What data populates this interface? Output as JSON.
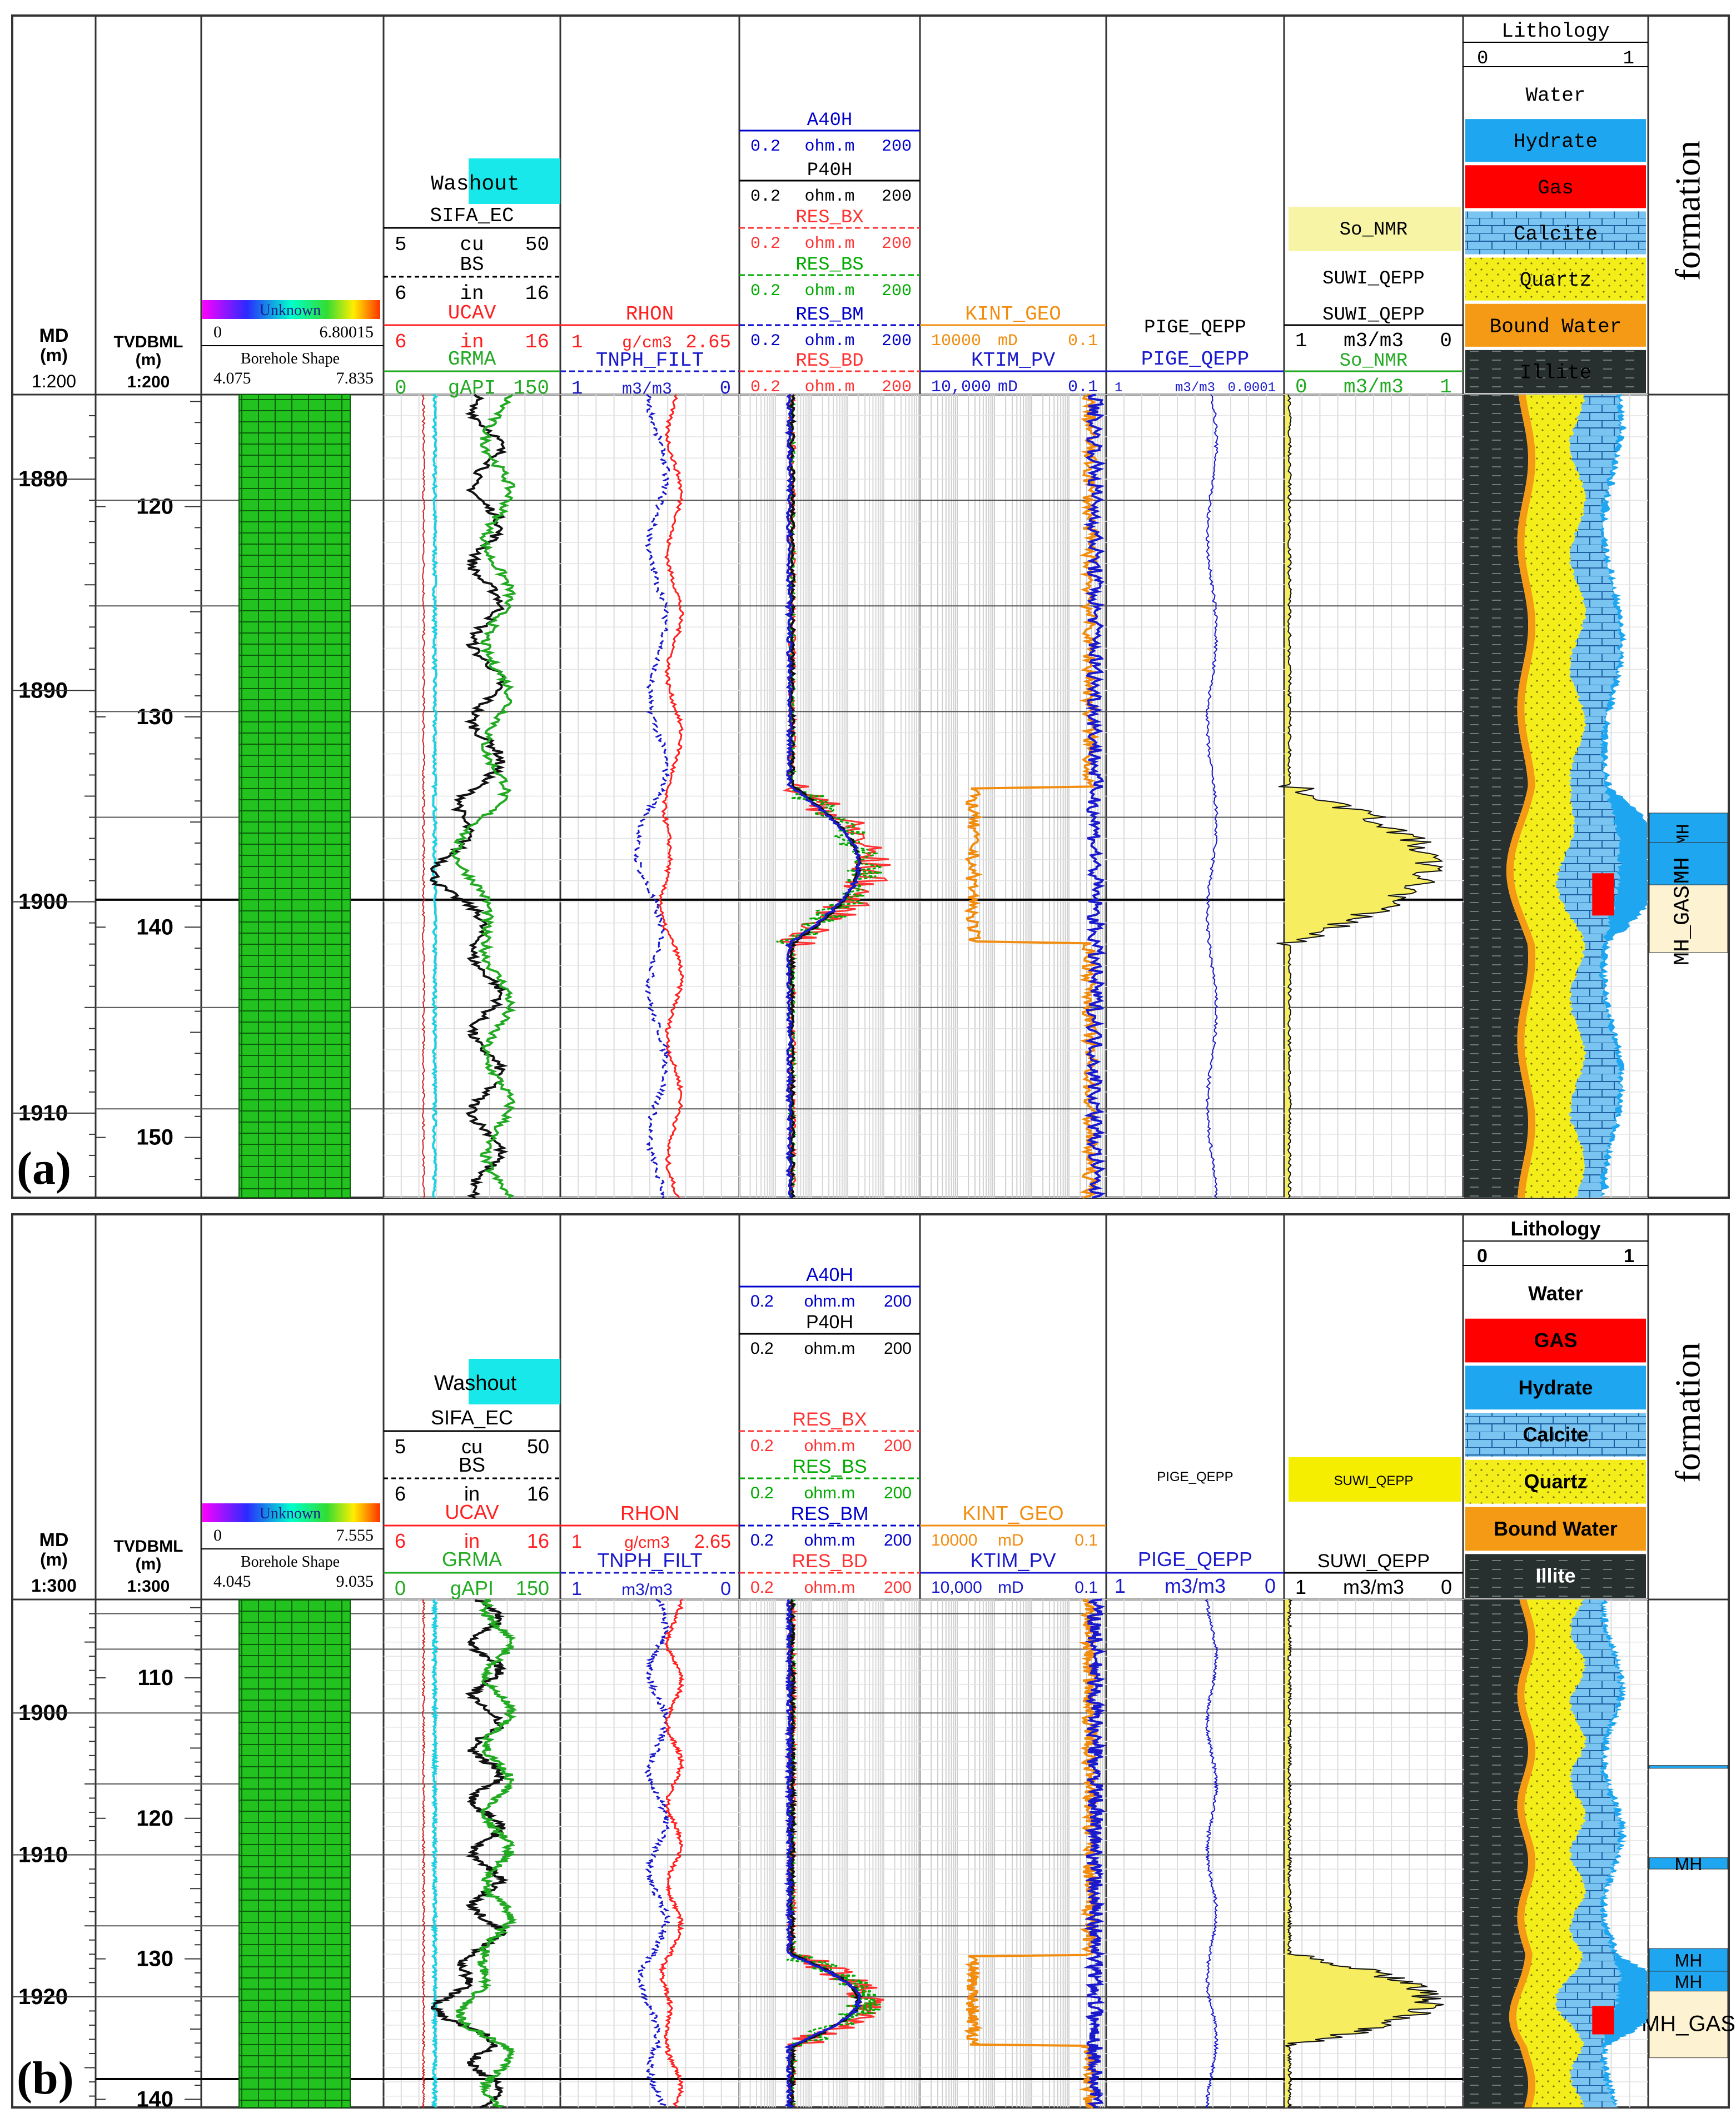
{
  "chart_data": [
    {
      "type": "well-log",
      "panel_label": "(a)",
      "depth_header": {
        "md": "MD",
        "md_unit": "(m)",
        "md_scale": "1:200",
        "tvd": "TVDBML",
        "tvd_unit": "(m)",
        "tvd_scale": "1:200"
      },
      "md_ticks": [
        "1880",
        "1890",
        "1900",
        "1910"
      ],
      "md_values": [
        1880,
        1890,
        1900,
        1910
      ],
      "tvd_ticks": [
        "120",
        "130",
        "140",
        "150"
      ],
      "tvd_values": [
        120,
        130,
        140,
        150
      ],
      "depth_range_md": [
        1876,
        1914
      ],
      "track1": {
        "image": {
          "name": "Unknown",
          "min": "0",
          "max": "6.80015"
        },
        "shape": {
          "name": "Borehole Shape",
          "min": "4.075",
          "max": "7.835"
        }
      },
      "track2": {
        "washout": "Washout",
        "sifa": {
          "name": "SIFA_EC",
          "min": "5",
          "unit": "cu",
          "max": "50"
        },
        "bs": {
          "name": "BS",
          "min": "6",
          "unit": "in",
          "max": "16"
        },
        "ucav": {
          "name": "UCAV",
          "min": "6",
          "unit": "in",
          "max": "16"
        },
        "grma": {
          "name": "GRMA",
          "min": "0",
          "unit": "gAPI",
          "max": "150"
        }
      },
      "track3": {
        "rhon": {
          "name": "RHON",
          "min": "1",
          "unit": "g/cm3",
          "max": "2.65"
        },
        "tnph": {
          "name": "TNPH_FILT",
          "min": "1",
          "unit": "m3/m3",
          "max": "0"
        }
      },
      "track4": [
        {
          "name": "A40H",
          "min": "0.2",
          "unit": "ohm.m",
          "max": "200",
          "color": "#0000cc"
        },
        {
          "name": "P40H",
          "min": "0.2",
          "unit": "ohm.m",
          "max": "200",
          "color": "#000000"
        },
        {
          "name": "RES_BX",
          "min": "0.2",
          "unit": "ohm.m",
          "max": "200",
          "color": "#ff3333"
        },
        {
          "name": "RES_BS",
          "min": "0.2",
          "unit": "ohm.m",
          "max": "200",
          "color": "#00aa00"
        },
        {
          "name": "RES_BM",
          "min": "0.2",
          "unit": "ohm.m",
          "max": "200",
          "color": "#0000cc"
        },
        {
          "name": "RES_BD",
          "min": "0.2",
          "unit": "ohm.m",
          "max": "200",
          "color": "#ff3333"
        }
      ],
      "track5": {
        "kint": {
          "name": "KINT_GEO",
          "min": "10000",
          "unit": "mD",
          "max": "0.1"
        },
        "ktim": {
          "name": "KTIM_PV",
          "min": "10,000",
          "unit": "mD",
          "max": "0.1"
        }
      },
      "track6": {
        "top": "PIGE_QEPP",
        "name": "PIGE_QEPP",
        "min": "1",
        "unit": "m3/m3",
        "max": "0.0001"
      },
      "track7": {
        "fill": "So_NMR",
        "suwi_top": "SUWI_QEPP",
        "suwi": {
          "name": "SUWI_QEPP",
          "min": "1",
          "unit": "m3/m3",
          "max": "0"
        },
        "so": {
          "name": "So_NMR",
          "min": "0",
          "unit": "m3/m3",
          "max": "1"
        }
      },
      "lithology": {
        "title": "Lithology",
        "min": "0",
        "max": "1",
        "legend": [
          {
            "name": "Water",
            "color": "#ffffff"
          },
          {
            "name": "Hydrate",
            "color": "#1ea7f0"
          },
          {
            "name": "Gas",
            "color": "#ff0000"
          },
          {
            "name": "Calcite",
            "color": "#79c4f0"
          },
          {
            "name": "Quartz",
            "color": "#f3ee1a"
          },
          {
            "name": "Bound Water",
            "color": "#f59a14"
          },
          {
            "name": "Illite",
            "color": "#27302e"
          }
        ]
      },
      "formation": {
        "title": "formation",
        "zones": [
          {
            "label": "MH",
            "top_md": 1895.8,
            "bottom_md": 1897.2,
            "color": "#1ea7f0"
          },
          {
            "label": "MH",
            "top_md": 1897.2,
            "bottom_md": 1899.2,
            "color": "#1ea7f0"
          },
          {
            "label": "MH_GAS",
            "top_md": 1899.2,
            "bottom_md": 1902.4,
            "color": "#fdf3d2"
          }
        ]
      }
    },
    {
      "type": "well-log",
      "panel_label": "(b)",
      "depth_header": {
        "md": "MD",
        "md_unit": "(m)",
        "md_scale": "1:300",
        "tvd": "TVDBML",
        "tvd_unit": "(m)",
        "tvd_scale": "1:300"
      },
      "md_ticks": [
        "1900",
        "1910",
        "1920"
      ],
      "md_values": [
        1900,
        1910,
        1920
      ],
      "tvd_ticks": [
        "110",
        "120",
        "130",
        "140"
      ],
      "tvd_values": [
        110,
        120,
        130,
        140
      ],
      "depth_range_md": [
        1892,
        1927.8
      ],
      "track1": {
        "image": {
          "name": "Unknown",
          "min": "0",
          "max": "7.555"
        },
        "shape": {
          "name": "Borehole Shape",
          "min": "4.045",
          "max": "9.035"
        }
      },
      "track2": {
        "washout": "Washout",
        "sifa": {
          "name": "SIFA_EC",
          "min": "5",
          "unit": "cu",
          "max": "50"
        },
        "bs": {
          "name": "BS",
          "min": "6",
          "unit": "in",
          "max": "16"
        },
        "ucav": {
          "name": "UCAV",
          "min": "6",
          "unit": "in",
          "max": "16"
        },
        "grma": {
          "name": "GRMA",
          "min": "0",
          "unit": "gAPI",
          "max": "150"
        }
      },
      "track3": {
        "rhon": {
          "name": "RHON",
          "min": "1",
          "unit": "g/cm3",
          "max": "2.65"
        },
        "tnph": {
          "name": "TNPH_FILT",
          "min": "1",
          "unit": "m3/m3",
          "max": "0"
        }
      },
      "track4": [
        {
          "name": "A40H",
          "min": "0.2",
          "unit": "ohm.m",
          "max": "200",
          "color": "#0000cc"
        },
        {
          "name": "P40H",
          "min": "0.2",
          "unit": "ohm.m",
          "max": "200",
          "color": "#000000"
        },
        {
          "name": "RES_BX",
          "min": "0.2",
          "unit": "ohm.m",
          "max": "200",
          "color": "#ff3333"
        },
        {
          "name": "RES_BS",
          "min": "0.2",
          "unit": "ohm.m",
          "max": "200",
          "color": "#00aa00"
        },
        {
          "name": "RES_BM",
          "min": "0.2",
          "unit": "ohm.m",
          "max": "200",
          "color": "#0000cc"
        },
        {
          "name": "RES_BD",
          "min": "0.2",
          "unit": "ohm.m",
          "max": "200",
          "color": "#ff3333"
        }
      ],
      "track5": {
        "kint": {
          "name": "KINT_GEO",
          "min": "10000",
          "unit": "mD",
          "max": "0.1"
        },
        "ktim": {
          "name": "KTIM_PV",
          "min": "10,000",
          "unit": "mD",
          "max": "0.1"
        }
      },
      "track6": {
        "top": "PIGE_QEPP",
        "name": "PIGE_QEPP",
        "min": "1",
        "unit": "m3/m3",
        "max": "0"
      },
      "track7": {
        "fill": "SUWI_QEPP",
        "suwi": {
          "name": "SUWI_QEPP",
          "min": "1",
          "unit": "m3/m3",
          "max": "0"
        }
      },
      "lithology": {
        "title": "Lithology",
        "min": "0",
        "max": "1",
        "legend": [
          {
            "name": "Water",
            "color": "#ffffff"
          },
          {
            "name": "GAS",
            "color": "#ff0000"
          },
          {
            "name": "Hydrate",
            "color": "#1ea7f0"
          },
          {
            "name": "Calcite",
            "color": "#79c4f0"
          },
          {
            "name": "Quartz",
            "color": "#f3ee1a"
          },
          {
            "name": "Bound Water",
            "color": "#f59a14"
          },
          {
            "name": "Illite",
            "color": "#27302e"
          }
        ]
      },
      "formation": {
        "title": "formation",
        "zones": [
          {
            "label": "",
            "top_md": 1903.7,
            "bottom_md": 1903.9,
            "color": "#1ea7f0"
          },
          {
            "label": "MH",
            "top_md": 1910.2,
            "bottom_md": 1911.0,
            "color": "#1ea7f0"
          },
          {
            "label": "MH",
            "top_md": 1916.6,
            "bottom_md": 1918.2,
            "color": "#1ea7f0"
          },
          {
            "label": "MH",
            "top_md": 1918.2,
            "bottom_md": 1919.6,
            "color": "#1ea7f0"
          },
          {
            "label": "MH_GAS",
            "top_md": 1919.6,
            "bottom_md": 1924.3,
            "color": "#fdf3d2"
          }
        ]
      }
    }
  ]
}
